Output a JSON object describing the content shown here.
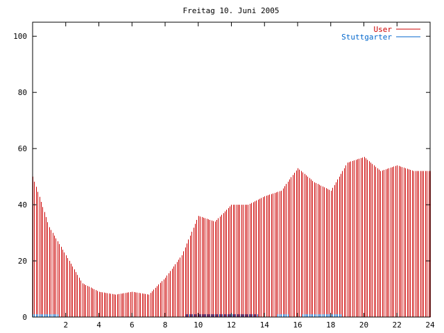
{
  "chart_data": {
    "type": "bar",
    "title": "Freitag 10. Juni 2005",
    "xlabel": "",
    "ylabel": "",
    "xlim": [
      0,
      24
    ],
    "ylim": [
      0,
      105
    ],
    "x_ticks": [
      2,
      4,
      6,
      8,
      10,
      12,
      14,
      16,
      18,
      20,
      22,
      24
    ],
    "y_ticks": [
      0,
      20,
      40,
      60,
      80,
      100
    ],
    "grid": false,
    "legend_position": "top-right",
    "series": [
      {
        "name": "User",
        "color": "#cc0000",
        "style": "impulses",
        "hourly_values": [
          50,
          32,
          22,
          12,
          9,
          8,
          9,
          8,
          14,
          22,
          36,
          34,
          40,
          40,
          43,
          45,
          53,
          48,
          45,
          55,
          57,
          52,
          54,
          52
        ],
        "step": 0.1
      },
      {
        "name": "Stuttgarter",
        "color": "#0066cc",
        "style": "impulses",
        "segments": [
          {
            "from": 0.0,
            "to": 1.5,
            "value": 1
          },
          {
            "from": 9.25,
            "to": 13.6,
            "value": 1
          },
          {
            "from": 14.8,
            "to": 15.4,
            "value": 1
          },
          {
            "from": 16.3,
            "to": 18.6,
            "value": 1
          }
        ]
      }
    ]
  }
}
